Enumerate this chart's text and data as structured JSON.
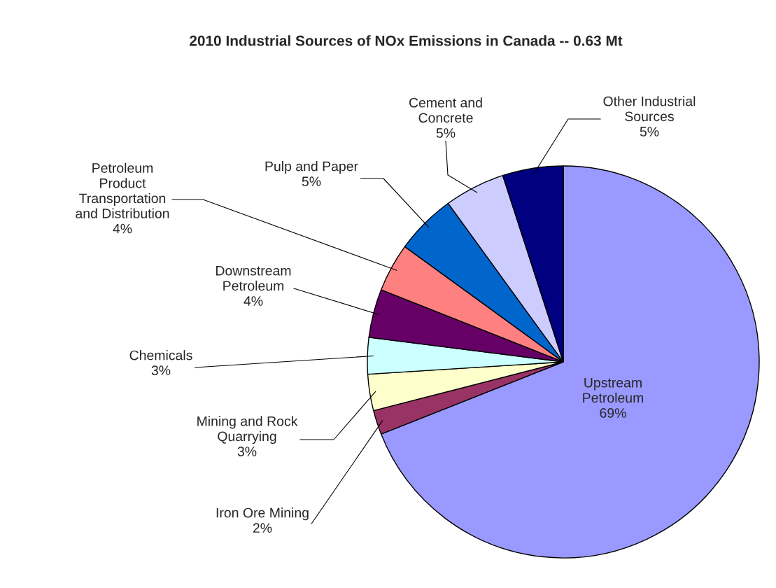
{
  "chart_data": {
    "type": "pie",
    "title": "2010 Industrial Sources of NOx Emissions in Canada -- 0.63 Mt",
    "categories": [
      "Upstream\nPetroleum",
      "Iron Ore Mining",
      "Mining and Rock\nQuarrying",
      "Chemicals",
      "Downstream\nPetroleum",
      "Petroleum\nProduct\nTransportation\nand Distribution",
      "Pulp and Paper",
      "Cement and\nConcrete",
      "Other Industrial\nSources"
    ],
    "values": [
      69,
      2,
      3,
      3,
      4,
      4,
      5,
      5,
      5
    ],
    "colors": [
      "#9999ff",
      "#993366",
      "#ffffcc",
      "#ccffff",
      "#660066",
      "#ff8080",
      "#0066cc",
      "#ccccff",
      "#000080"
    ],
    "value_labels": [
      "69%",
      "2%",
      "3%",
      "3%",
      "4%",
      "4%",
      "5%",
      "5%",
      "5%"
    ],
    "legend": false
  }
}
